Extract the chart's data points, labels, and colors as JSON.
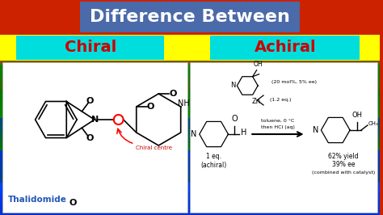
{
  "title": "Difference Between",
  "title_box_color": "#4a6aaa",
  "title_text_color": "#ffffff",
  "title_fontsize": 16,
  "label_left": "Chiral",
  "label_right": "Achiral",
  "label_color": "#cc0000",
  "label_bg": "#ffff00",
  "label_cyan_bg": "#00dddd",
  "label_fontsize": 14,
  "figsize": [
    4.74,
    2.66
  ],
  "dpi": 100,
  "left_panel_label": "Thalidomide",
  "chiral_label": "Chiral centre",
  "chiral_text_color": "#cc0000",
  "right_texts": [
    "(20 mol%, 5% ee)",
    "(1.2 eq.)",
    "toluene, 0 °C",
    "then HCl (aq)",
    "1 eq.",
    "(achiral)",
    "62% yield",
    "39% ee",
    "(combined with catalyst)"
  ],
  "bg_bands": [
    [
      0.0,
      "#cc2200"
    ],
    [
      0.18,
      "#cc2200"
    ],
    [
      0.22,
      "#885500"
    ],
    [
      0.3,
      "#336600"
    ],
    [
      0.42,
      "#008800"
    ],
    [
      0.55,
      "#007700"
    ],
    [
      0.7,
      "#004488"
    ],
    [
      0.85,
      "#0033cc"
    ],
    [
      1.0,
      "#0044ff"
    ]
  ]
}
